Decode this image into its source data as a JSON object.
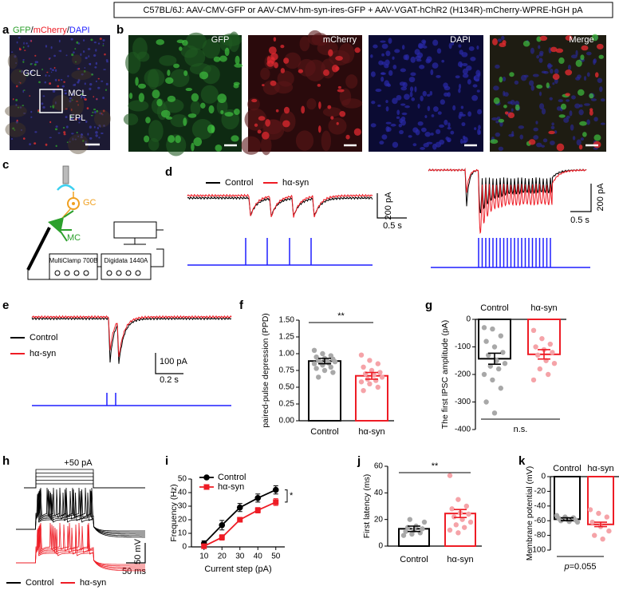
{
  "header": "C57BL/6J: AAV-CMV-GFP or AAV-CMV-hm-syn-ires-GFP + AAV-VGAT-hChR2 (H134R)-mCherry-WPRE-hGH pA",
  "trace_colors": [
    "#000000",
    "#ee1c25"
  ],
  "stim_color": "#1f1fff",
  "panels": {
    "a": {
      "letter": "a",
      "stain": [
        "GFP",
        "/",
        "mCherry",
        "/",
        "DAPI"
      ],
      "stain_colors": [
        "#2ca02c",
        "#000000",
        "#ee1c25",
        "#000000",
        "#1f1fff"
      ],
      "regions": [
        "GCL",
        "MCL",
        "EPL"
      ]
    },
    "b": {
      "letter": "b",
      "channels": [
        "GFP",
        "mCherry",
        "DAPI",
        "Merge"
      ]
    },
    "c": {
      "letter": "c",
      "cells": [
        "GC",
        "MC"
      ],
      "devices": [
        "MultiClamp 700B",
        "Digidata  1440A"
      ]
    },
    "d": {
      "letter": "d",
      "legend": [
        "Control",
        "hα-syn"
      ],
      "scale_current": "200 pA",
      "scale_time": "0.5 s"
    },
    "e": {
      "letter": "e",
      "legend": [
        "Control",
        "hα-syn"
      ],
      "scale_current": "100 pA",
      "scale_time": "0.2 s"
    },
    "h": {
      "letter": "h",
      "step": "+50 pA",
      "legend": [
        "Control",
        "hα-syn"
      ],
      "scale_voltage": "50 mV",
      "scale_time": "50 ms"
    }
  },
  "chart_data": [
    {
      "panel": "f",
      "type": "bar",
      "ylabel": "paired-pulse depression (PPD)",
      "categories": [
        "Control",
        "hα-syn"
      ],
      "values": [
        0.89,
        0.67
      ],
      "errors": [
        0.04,
        0.05
      ],
      "points": [
        [
          1.05,
          1.0,
          0.97,
          0.95,
          0.93,
          0.92,
          0.9,
          0.9,
          0.88,
          0.87,
          0.86,
          0.85,
          0.83,
          0.8,
          0.78,
          0.75,
          0.72,
          0.65
        ],
        [
          0.98,
          0.9,
          0.85,
          0.8,
          0.75,
          0.72,
          0.7,
          0.68,
          0.65,
          0.62,
          0.6,
          0.58,
          0.55,
          0.5,
          0.45
        ]
      ],
      "colors": [
        "#000000",
        "#ee1c25"
      ],
      "point_colors": [
        "#a8a8a8",
        "#f5a3a8"
      ],
      "ylim": [
        0,
        1.5
      ],
      "yticks": [
        {
          "value": 0,
          "label": "0.00"
        },
        {
          "value": 0.25,
          "label": "0.25"
        },
        {
          "value": 0.5,
          "label": "0.50"
        },
        {
          "value": 0.75,
          "label": "0.75"
        },
        {
          "value": 1,
          "label": "1.00"
        },
        {
          "value": 1.25,
          "label": "1.25"
        },
        {
          "value": 1.5,
          "label": "1.50"
        }
      ],
      "significance": "**"
    },
    {
      "panel": "g",
      "type": "bar",
      "ylabel": "The first IPSC amplitude (pA)",
      "categories": [
        "Control",
        "hα-syn"
      ],
      "values": [
        -143,
        -127
      ],
      "errors": [
        20,
        17
      ],
      "points": [
        [
          -30,
          -35,
          -60,
          -80,
          -100,
          -120,
          -130,
          -150,
          -160,
          -170,
          -180,
          -200,
          -220,
          -250,
          -300,
          -340
        ],
        [
          -40,
          -70,
          -90,
          -100,
          -110,
          -120,
          -130,
          -150,
          -160,
          -180,
          -200,
          -220
        ]
      ],
      "colors": [
        "#000000",
        "#ee1c25"
      ],
      "point_colors": [
        "#a8a8a8",
        "#f5a3a8"
      ],
      "ylim": [
        -400,
        0
      ],
      "yticks": [
        -400,
        -300,
        -200,
        -100,
        0
      ],
      "significance": "n.s."
    },
    {
      "panel": "i",
      "type": "line",
      "xlabel": "Current step (pA)",
      "ylabel": "Frequency (Hz)",
      "x": [
        10,
        20,
        30,
        40,
        50
      ],
      "xlim": [
        3,
        55
      ],
      "xticks": [
        10,
        20,
        30,
        40,
        50
      ],
      "ylim": [
        0,
        50
      ],
      "yticks": [
        0,
        10,
        20,
        30,
        40,
        50
      ],
      "series": [
        {
          "name": "Control",
          "color": "#000000",
          "marker": "circle",
          "values": [
            2.5,
            16,
            29,
            36,
            42
          ],
          "errors": [
            2,
            3.5,
            3,
            3,
            3
          ]
        },
        {
          "name": "hα-syn",
          "color": "#ee1c25",
          "marker": "square",
          "values": [
            0.5,
            7,
            20,
            27,
            33
          ],
          "errors": [
            1,
            2,
            1.5,
            2,
            2.5
          ]
        }
      ],
      "significance": "*"
    },
    {
      "panel": "j",
      "type": "bar",
      "ylabel": "First latency (ms)",
      "categories": [
        "Control",
        "hα-syn"
      ],
      "values": [
        13,
        24.5
      ],
      "errors": [
        2,
        3
      ],
      "points": [
        [
          8,
          9,
          10,
          11,
          12,
          13,
          14,
          15,
          18,
          20
        ],
        [
          53,
          35,
          30,
          28,
          25,
          24,
          22,
          20,
          18,
          16,
          14,
          12,
          10
        ]
      ],
      "colors": [
        "#000000",
        "#ee1c25"
      ],
      "point_colors": [
        "#a8a8a8",
        "#f5a3a8"
      ],
      "ylim": [
        0,
        60
      ],
      "yticks": [
        0,
        20,
        40,
        60
      ],
      "significance": "**"
    },
    {
      "panel": "k",
      "type": "bar",
      "ylabel": "Membrane potential (mV)",
      "categories": [
        "Control",
        "hα-syn"
      ],
      "values": [
        -58,
        -65
      ],
      "errors": [
        2,
        3
      ],
      "points": [
        [
          -53,
          -55,
          -56,
          -57,
          -58,
          -59,
          -60,
          -61,
          -62
        ],
        [
          -45,
          -50,
          -55,
          -62,
          -68,
          -74,
          -80,
          -85
        ]
      ],
      "colors": [
        "#000000",
        "#ee1c25"
      ],
      "point_colors": [
        "#a8a8a8",
        "#f5a3a8"
      ],
      "ylim": [
        -100,
        0
      ],
      "yticks": [
        -100,
        -80,
        -60,
        -40,
        -20,
        0
      ],
      "annotation": [
        "p",
        "=0.055"
      ]
    }
  ]
}
